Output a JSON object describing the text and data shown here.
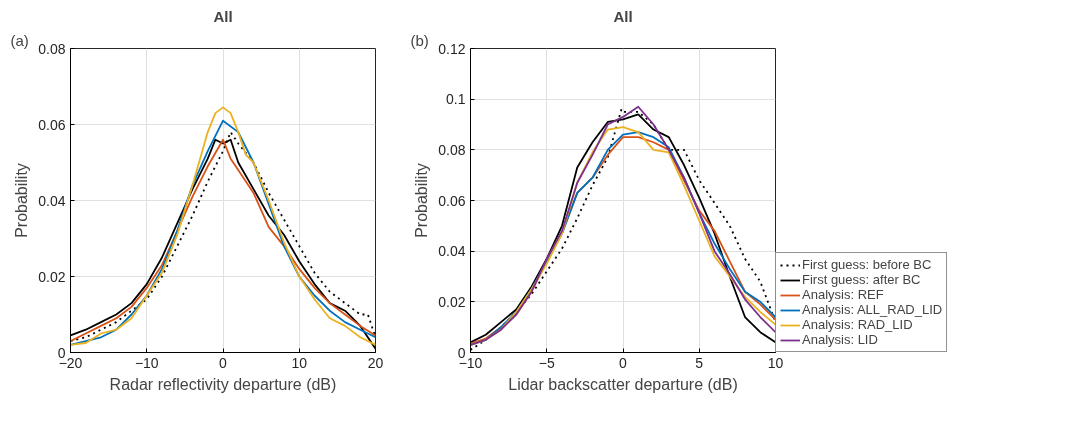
{
  "chart_data": [
    {
      "type": "line",
      "title": "All",
      "annotations": [
        "(a)"
      ],
      "xlabel": "Radar reflectivity departure (dB)",
      "ylabel": "Probability",
      "xlim": [
        -20,
        20
      ],
      "ylim": [
        0,
        0.08
      ],
      "xticks": [
        -20,
        -10,
        0,
        10,
        20
      ],
      "yticks": [
        0,
        0.02,
        0.04,
        0.06,
        0.08
      ],
      "grid": true,
      "legend": false,
      "marker": "none",
      "series": [
        {
          "color": "#000000",
          "line_style": "dotted",
          "x": [
            -20,
            -18,
            -16,
            -14,
            -12,
            -10,
            -8,
            -6,
            -4,
            -2,
            0,
            1,
            2,
            4,
            6,
            8,
            10,
            12,
            14,
            16,
            18,
            19,
            20
          ],
          "values": [
            0.003,
            0.004,
            0.006,
            0.008,
            0.011,
            0.014,
            0.02,
            0.028,
            0.036,
            0.045,
            0.053,
            0.058,
            0.055,
            0.05,
            0.042,
            0.035,
            0.028,
            0.021,
            0.016,
            0.013,
            0.01,
            0.01,
            0.004
          ]
        },
        {
          "color": "#000000",
          "line_style": "solid",
          "x": [
            -20,
            -18,
            -16,
            -14,
            -12,
            -10,
            -8,
            -6,
            -4,
            -2,
            -1,
            0,
            1,
            2,
            4,
            6,
            8,
            10,
            12,
            14,
            16,
            18,
            20
          ],
          "values": [
            0.0045,
            0.006,
            0.008,
            0.01,
            0.013,
            0.018,
            0.025,
            0.034,
            0.043,
            0.051,
            0.056,
            0.055,
            0.056,
            0.05,
            0.043,
            0.036,
            0.031,
            0.024,
            0.018,
            0.013,
            0.011,
            0.007,
            0.001
          ]
        },
        {
          "color": "#d95319",
          "line_style": "solid",
          "x": [
            -20,
            -18,
            -16,
            -14,
            -12,
            -10,
            -8,
            -6,
            -4,
            -2,
            0,
            1,
            2,
            4,
            6,
            8,
            10,
            12,
            14,
            16,
            18,
            20
          ],
          "values": [
            0.003,
            0.005,
            0.007,
            0.009,
            0.012,
            0.017,
            0.023,
            0.032,
            0.041,
            0.049,
            0.056,
            0.051,
            0.048,
            0.042,
            0.033,
            0.028,
            0.022,
            0.017,
            0.013,
            0.01,
            0.007,
            0.0045
          ]
        },
        {
          "color": "#0072bd",
          "line_style": "solid",
          "x": [
            -20,
            -18,
            -16,
            -14,
            -12,
            -10,
            -8,
            -6,
            -4,
            -2,
            0,
            2,
            4,
            6,
            8,
            10,
            12,
            14,
            16,
            18,
            20
          ],
          "values": [
            0.002,
            0.003,
            0.004,
            0.006,
            0.01,
            0.015,
            0.022,
            0.032,
            0.044,
            0.053,
            0.061,
            0.058,
            0.05,
            0.039,
            0.028,
            0.02,
            0.015,
            0.011,
            0.008,
            0.006,
            0.004
          ]
        },
        {
          "color": "#edb120",
          "line_style": "solid",
          "x": [
            -20,
            -18,
            -16,
            -14,
            -12,
            -10,
            -8,
            -6,
            -4,
            -2,
            -1,
            0,
            1,
            2,
            3,
            4,
            6,
            8,
            10,
            12,
            14,
            16,
            18,
            20
          ],
          "values": [
            0.002,
            0.0025,
            0.005,
            0.006,
            0.009,
            0.015,
            0.021,
            0.031,
            0.044,
            0.058,
            0.063,
            0.0645,
            0.063,
            0.058,
            0.052,
            0.05,
            0.04,
            0.029,
            0.02,
            0.014,
            0.009,
            0.007,
            0.004,
            0.002
          ]
        }
      ]
    },
    {
      "type": "line",
      "title": "All",
      "annotations": [
        "(b)"
      ],
      "xlabel": "Lidar backscatter departure (dB)",
      "ylabel": "Probability",
      "xlim": [
        -10,
        10
      ],
      "ylim": [
        0,
        0.12
      ],
      "xticks": [
        -10,
        -5,
        0,
        5,
        10
      ],
      "yticks": [
        0,
        0.02,
        0.04,
        0.06,
        0.08,
        {
          "value": 0.1,
          "label": "0.1"
        },
        0.12
      ],
      "grid": true,
      "legend": "bottom right",
      "marker": "none",
      "x": [
        -10,
        -9,
        -8,
        -7,
        -6,
        -5,
        -4,
        -3,
        -2,
        -1,
        0,
        1,
        2,
        3,
        4,
        5,
        6,
        7,
        8,
        9,
        10
      ],
      "series": [
        {
          "name": "First guess: before BC",
          "color": "#000000",
          "line_style": "dotted",
          "x": [
            -10,
            -9,
            -8,
            -7,
            -6,
            -5,
            -4,
            -3,
            -2,
            -1,
            -0.1,
            0,
            1,
            2,
            3,
            4,
            5,
            6,
            7,
            8,
            9,
            10
          ],
          "values": [
            0.001,
            0.005,
            0.01,
            0.016,
            0.023,
            0.032,
            0.041,
            0.053,
            0.066,
            0.077,
            0.096,
            0.095,
            0.095,
            0.09,
            0.08,
            0.08,
            0.068,
            0.059,
            0.05,
            0.037,
            0.028,
            0.012
          ]
        },
        {
          "name": "First guess: after BC",
          "color": "#000000",
          "line_style": "solid",
          "values": [
            0.004,
            0.007,
            0.012,
            0.017,
            0.026,
            0.037,
            0.05,
            0.073,
            0.083,
            0.091,
            0.092,
            0.094,
            0.088,
            0.085,
            0.074,
            0.061,
            0.047,
            0.03,
            0.014,
            0.008,
            0.004
          ]
        },
        {
          "name": "Analysis: REF",
          "color": "#d95319",
          "line_style": "solid",
          "values": [
            0.0035,
            0.0055,
            0.01,
            0.015,
            0.024,
            0.036,
            0.047,
            0.063,
            0.069,
            0.078,
            0.085,
            0.085,
            0.083,
            0.08,
            0.068,
            0.056,
            0.048,
            0.036,
            0.024,
            0.019,
            0.013
          ]
        },
        {
          "name": "Analysis: ALL_RAD_LID",
          "color": "#0072bd",
          "line_style": "solid",
          "values": [
            0.003,
            0.005,
            0.01,
            0.016,
            0.025,
            0.036,
            0.047,
            0.063,
            0.069,
            0.08,
            0.086,
            0.087,
            0.085,
            0.081,
            0.069,
            0.055,
            0.043,
            0.033,
            0.024,
            0.02,
            0.014
          ]
        },
        {
          "name": "Analysis: RAD_LID",
          "color": "#edb120",
          "line_style": "solid",
          "values": [
            0.003,
            0.005,
            0.009,
            0.016,
            0.025,
            0.035,
            0.047,
            0.067,
            0.079,
            0.088,
            0.089,
            0.087,
            0.08,
            0.079,
            0.066,
            0.052,
            0.038,
            0.03,
            0.022,
            0.016,
            0.011
          ]
        },
        {
          "name": "Analysis: LID",
          "color": "#7e2f8e",
          "line_style": "solid",
          "values": [
            0.003,
            0.005,
            0.009,
            0.015,
            0.024,
            0.037,
            0.048,
            0.067,
            0.078,
            0.09,
            0.093,
            0.097,
            0.09,
            0.08,
            0.069,
            0.055,
            0.04,
            0.031,
            0.021,
            0.014,
            0.008
          ]
        }
      ]
    }
  ]
}
